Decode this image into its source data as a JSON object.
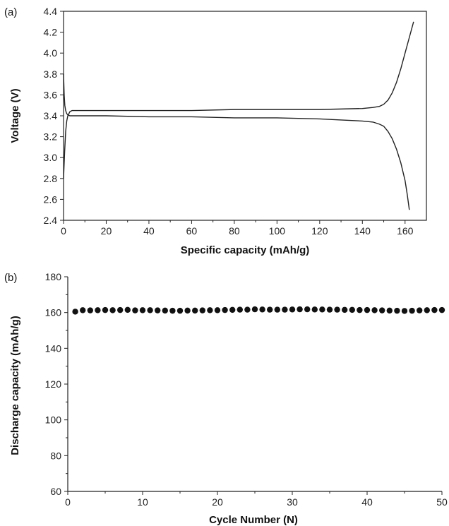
{
  "chart_data": [
    {
      "panel_label": "(a)",
      "type": "line",
      "xlabel": "Specific capacity (mAh/g)",
      "ylabel": "Voltage (V)",
      "xlim": [
        0,
        170
      ],
      "ylim": [
        2.4,
        4.4
      ],
      "xticks": [
        0,
        20,
        40,
        60,
        80,
        100,
        120,
        140,
        160
      ],
      "yticks": [
        2.4,
        2.6,
        2.8,
        3.0,
        3.2,
        3.4,
        3.6,
        3.8,
        4.0,
        4.2,
        4.4
      ],
      "ytick_labels": [
        "2.4",
        "2.6",
        "2.8",
        "3.0",
        "3.2",
        "3.4",
        "3.6",
        "3.8",
        "4.0",
        "4.2",
        "4.4"
      ],
      "grid": false,
      "series": [
        {
          "x": [
            0,
            0.5,
            1,
            1.5,
            2,
            2.5,
            3,
            4,
            6,
            10,
            20,
            40,
            60,
            80,
            100,
            120,
            140,
            145,
            148,
            150,
            152,
            154,
            156,
            158,
            160,
            162,
            164
          ],
          "values": [
            2.8,
            3.05,
            3.25,
            3.35,
            3.4,
            3.42,
            3.44,
            3.45,
            3.45,
            3.45,
            3.45,
            3.45,
            3.45,
            3.46,
            3.46,
            3.46,
            3.47,
            3.48,
            3.49,
            3.51,
            3.55,
            3.62,
            3.72,
            3.85,
            4.0,
            4.15,
            4.3
          ]
        },
        {
          "x": [
            0,
            0.3,
            0.6,
            1,
            1.5,
            2,
            3,
            5,
            10,
            20,
            40,
            60,
            80,
            100,
            120,
            130,
            140,
            145,
            148,
            150,
            152,
            154,
            156,
            158,
            160,
            161,
            162
          ],
          "values": [
            3.8,
            3.6,
            3.5,
            3.45,
            3.42,
            3.41,
            3.4,
            3.4,
            3.4,
            3.4,
            3.39,
            3.39,
            3.38,
            3.38,
            3.37,
            3.36,
            3.35,
            3.34,
            3.32,
            3.3,
            3.25,
            3.18,
            3.08,
            2.95,
            2.78,
            2.65,
            2.5
          ]
        }
      ]
    },
    {
      "panel_label": "(b)",
      "type": "scatter",
      "xlabel": "Cycle Number (N)",
      "ylabel": "Discharge capacity (mAh/g)",
      "xlim": [
        0,
        50
      ],
      "ylim": [
        60,
        180
      ],
      "xticks": [
        0,
        10,
        20,
        30,
        40,
        50
      ],
      "yticks": [
        60,
        80,
        100,
        120,
        140,
        160,
        180
      ],
      "grid": false,
      "series": [
        {
          "x": [
            1,
            2,
            3,
            4,
            5,
            6,
            7,
            8,
            9,
            10,
            11,
            12,
            13,
            14,
            15,
            16,
            17,
            18,
            19,
            20,
            21,
            22,
            23,
            24,
            25,
            26,
            27,
            28,
            29,
            30,
            31,
            32,
            33,
            34,
            35,
            36,
            37,
            38,
            39,
            40,
            41,
            42,
            43,
            44,
            45,
            46,
            47,
            48,
            49,
            50
          ],
          "values": [
            160.5,
            161.3,
            161.2,
            161.3,
            161.4,
            161.3,
            161.4,
            161.5,
            161.2,
            161.3,
            161.3,
            161.2,
            161.1,
            161.0,
            161.0,
            161.1,
            161.1,
            161.2,
            161.3,
            161.3,
            161.4,
            161.5,
            161.6,
            161.6,
            161.8,
            161.7,
            161.6,
            161.6,
            161.6,
            161.7,
            161.8,
            161.8,
            161.7,
            161.7,
            161.6,
            161.6,
            161.5,
            161.5,
            161.4,
            161.4,
            161.3,
            161.2,
            161.1,
            161.0,
            160.9,
            161.0,
            161.2,
            161.3,
            161.4,
            161.4
          ]
        }
      ]
    }
  ]
}
